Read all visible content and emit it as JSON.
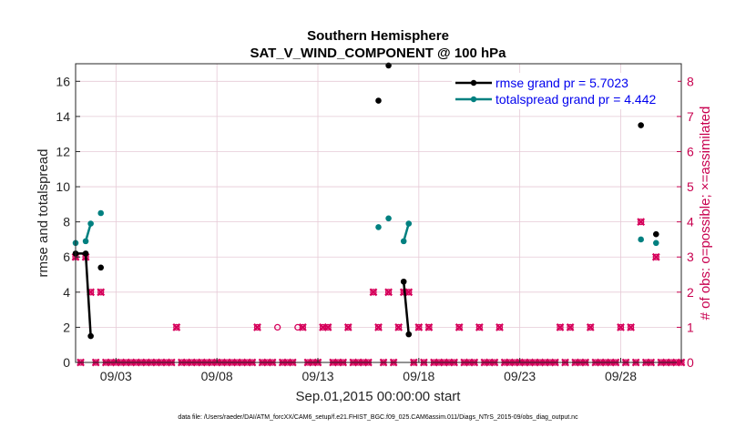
{
  "chart_data": {
    "type": "line",
    "title": "Southern Hemisphere",
    "subtitle": "SAT_V_WIND_COMPONENT @ 100 hPa",
    "xlabel": "Sep.01,2015 00:00:00 start",
    "ylabel": "rmse and totalspread",
    "ylabel_right": "# of obs: o=possible; ×=assimilated",
    "footer": "data file: /Users/raeder/DAI/ATM_forcXX/CAM6_setup/f.e21.FHIST_BGC.f09_025.CAM6assim.011/Diags_NTrS_2015-09/obs_diag_output.nc",
    "xlim": [
      1,
      31
    ],
    "ylim": [
      0,
      17
    ],
    "ylim_right": [
      0,
      8.5
    ],
    "x_ticks": [
      3,
      8,
      13,
      18,
      23,
      28
    ],
    "x_tick_labels": [
      "09/03",
      "09/08",
      "09/13",
      "09/18",
      "09/23",
      "09/28"
    ],
    "y_ticks": [
      0,
      2,
      4,
      6,
      8,
      10,
      12,
      14,
      16
    ],
    "y_tick_labels": [
      "0",
      "2",
      "4",
      "6",
      "8",
      "10",
      "12",
      "14",
      "16"
    ],
    "y_ticks_right": [
      0,
      1,
      2,
      3,
      4,
      5,
      6,
      7,
      8
    ],
    "y_tick_labels_right": [
      "0",
      "1",
      "2",
      "3",
      "4",
      "5",
      "6",
      "7",
      "8"
    ],
    "colors": {
      "rmse": "#000000",
      "spread": "#008080",
      "obs": "#d6005b",
      "grid": "#e6cad6",
      "legend_text": "#0000ee"
    },
    "series": [
      {
        "name": "rmse",
        "legend": "rmse grand pr = 5.7023",
        "segments": [
          [
            [
              1.0,
              6.2
            ],
            [
              1.5,
              6.2
            ],
            [
              1.75,
              1.5
            ]
          ],
          [
            [
              17.25,
              4.6
            ],
            [
              17.5,
              1.6
            ]
          ]
        ],
        "isolated": [
          [
            2.25,
            5.4
          ],
          [
            16.0,
            14.9
          ],
          [
            16.5,
            16.9
          ],
          [
            29.0,
            13.5
          ],
          [
            29.75,
            7.3
          ]
        ]
      },
      {
        "name": "totalspread",
        "legend": "totalspread grand pr = 4.442",
        "segments": [
          [
            [
              1.5,
              6.9
            ],
            [
              1.75,
              7.9
            ]
          ],
          [
            [
              17.25,
              6.9
            ],
            [
              17.5,
              7.9
            ]
          ]
        ],
        "isolated": [
          [
            1.0,
            6.8
          ],
          [
            2.25,
            8.5
          ],
          [
            16.0,
            7.7
          ],
          [
            16.5,
            8.2
          ],
          [
            29.0,
            7.0
          ],
          [
            29.75,
            6.8
          ]
        ]
      }
    ],
    "obs_possible": [
      [
        1.0,
        3
      ],
      [
        1.5,
        3
      ],
      [
        1.75,
        2
      ],
      [
        2.25,
        2
      ],
      [
        6.0,
        1
      ],
      [
        10.0,
        1
      ],
      [
        11.0,
        1
      ],
      [
        12.0,
        1
      ],
      [
        12.25,
        1
      ],
      [
        13.25,
        1
      ],
      [
        13.5,
        1
      ],
      [
        14.5,
        1
      ],
      [
        15.75,
        2
      ],
      [
        16.0,
        1
      ],
      [
        16.5,
        2
      ],
      [
        17.0,
        1
      ],
      [
        17.25,
        2
      ],
      [
        17.5,
        2
      ],
      [
        18.0,
        1
      ],
      [
        18.5,
        1
      ],
      [
        20.0,
        1
      ],
      [
        21.0,
        1
      ],
      [
        22.0,
        1
      ],
      [
        25.0,
        1
      ],
      [
        25.5,
        1
      ],
      [
        26.5,
        1
      ],
      [
        28.0,
        1
      ],
      [
        28.5,
        1
      ],
      [
        29.0,
        4
      ],
      [
        29.75,
        3
      ]
    ],
    "obs_assimilated": [
      [
        1.0,
        3
      ],
      [
        1.5,
        3
      ],
      [
        1.75,
        2
      ],
      [
        2.25,
        2
      ],
      [
        6.0,
        1
      ],
      [
        10.0,
        1
      ],
      [
        12.25,
        1
      ],
      [
        13.25,
        1
      ],
      [
        13.5,
        1
      ],
      [
        14.5,
        1
      ],
      [
        15.75,
        2
      ],
      [
        16.0,
        1
      ],
      [
        16.5,
        2
      ],
      [
        17.0,
        1
      ],
      [
        17.25,
        2
      ],
      [
        17.5,
        2
      ],
      [
        18.0,
        1
      ],
      [
        18.5,
        1
      ],
      [
        20.0,
        1
      ],
      [
        21.0,
        1
      ],
      [
        22.0,
        1
      ],
      [
        25.0,
        1
      ],
      [
        25.5,
        1
      ],
      [
        26.5,
        1
      ],
      [
        28.0,
        1
      ],
      [
        28.5,
        1
      ],
      [
        29.0,
        4
      ],
      [
        29.75,
        3
      ]
    ],
    "zero_count_start": 1.0,
    "zero_count_end": 31.0,
    "zero_count_step": 0.25
  }
}
